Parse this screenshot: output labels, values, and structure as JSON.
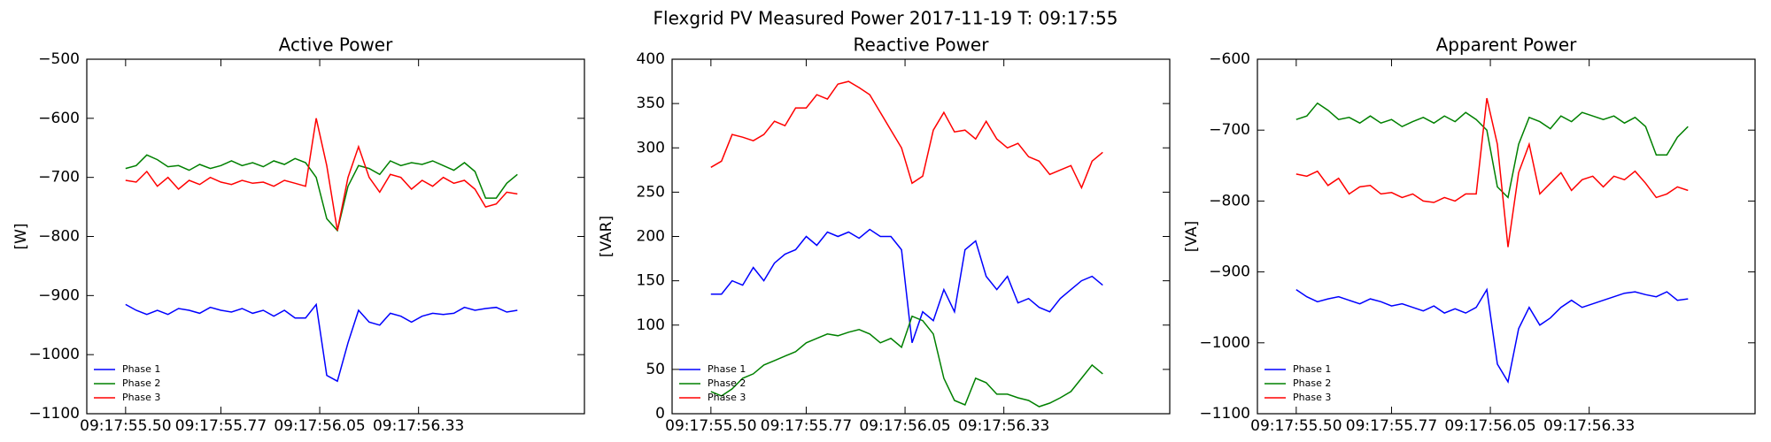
{
  "title": "Flexgrid PV Measured Power 2017-11-19 T: 09:17:55",
  "chart_data": [
    {
      "type": "line",
      "title": "Active Power",
      "ylabel": "[W]",
      "x": [
        "09:17:55.50",
        "09:17:55.53",
        "09:17:55.56",
        "09:17:55.59",
        "09:17:55.62",
        "09:17:55.65",
        "09:17:55.68",
        "09:17:55.71",
        "09:17:55.74",
        "09:17:55.77",
        "09:17:55.80",
        "09:17:55.83",
        "09:17:55.86",
        "09:17:55.89",
        "09:17:55.92",
        "09:17:55.95",
        "09:17:55.98",
        "09:17:56.01",
        "09:17:56.04",
        "09:17:56.07",
        "09:17:56.10",
        "09:17:56.13",
        "09:17:56.16",
        "09:17:56.19",
        "09:17:56.22",
        "09:17:56.25",
        "09:17:56.28",
        "09:17:56.31",
        "09:17:56.34",
        "09:17:56.37",
        "09:17:56.40",
        "09:17:56.43",
        "09:17:56.46",
        "09:17:56.49",
        "09:17:56.52",
        "09:17:56.55",
        "09:17:56.58",
        "09:17:56.61"
      ],
      "xlim": [
        "09:17:55.39",
        "09:17:56.80"
      ],
      "xticks": [
        "09:17:55.50",
        "09:17:55.77",
        "09:17:56.05",
        "09:17:56.33"
      ],
      "ylim": [
        -1100,
        -500
      ],
      "yticks": [
        {
          "value": -1100,
          "label": "−1100"
        },
        {
          "value": -1000,
          "label": "−1000"
        },
        {
          "value": -900,
          "label": "−900"
        },
        {
          "value": -800,
          "label": "−800"
        },
        {
          "value": -700,
          "label": "−700"
        },
        {
          "value": -600,
          "label": "−600"
        },
        {
          "value": -500,
          "label": "−500"
        }
      ],
      "legend": "lower left",
      "series": [
        {
          "name": "Phase 1",
          "color": "#0000ff",
          "values": [
            -915,
            -925,
            -932,
            -925,
            -932,
            -922,
            -925,
            -930,
            -920,
            -925,
            -928,
            -922,
            -930,
            -925,
            -935,
            -925,
            -938,
            -938,
            -915,
            -1035,
            -1045,
            -980,
            -925,
            -945,
            -950,
            -930,
            -935,
            -945,
            -935,
            -930,
            -932,
            -930,
            -920,
            -925,
            -922,
            -920,
            -928,
            -925
          ]
        },
        {
          "name": "Phase 2",
          "color": "#008000",
          "values": [
            -685,
            -680,
            -662,
            -670,
            -682,
            -680,
            -688,
            -678,
            -685,
            -680,
            -672,
            -680,
            -675,
            -682,
            -672,
            -678,
            -668,
            -675,
            -700,
            -770,
            -790,
            -715,
            -680,
            -685,
            -695,
            -672,
            -680,
            -675,
            -678,
            -672,
            -680,
            -688,
            -675,
            -690,
            -735,
            -735,
            -710,
            -695
          ]
        },
        {
          "name": "Phase 3",
          "color": "#ff0000",
          "values": [
            -705,
            -708,
            -690,
            -715,
            -700,
            -720,
            -705,
            -712,
            -700,
            -708,
            -712,
            -705,
            -710,
            -708,
            -715,
            -705,
            -710,
            -715,
            -600,
            -680,
            -790,
            -700,
            -648,
            -700,
            -725,
            -695,
            -700,
            -720,
            -705,
            -715,
            -700,
            -710,
            -705,
            -720,
            -750,
            -745,
            -725,
            -728
          ]
        }
      ]
    },
    {
      "type": "line",
      "title": "Reactive Power",
      "ylabel": "[VAR]",
      "x": [
        "09:17:55.50",
        "09:17:55.53",
        "09:17:55.56",
        "09:17:55.59",
        "09:17:55.62",
        "09:17:55.65",
        "09:17:55.68",
        "09:17:55.71",
        "09:17:55.74",
        "09:17:55.77",
        "09:17:55.80",
        "09:17:55.83",
        "09:17:55.86",
        "09:17:55.89",
        "09:17:55.92",
        "09:17:55.95",
        "09:17:55.98",
        "09:17:56.01",
        "09:17:56.04",
        "09:17:56.07",
        "09:17:56.10",
        "09:17:56.13",
        "09:17:56.16",
        "09:17:56.19",
        "09:17:56.22",
        "09:17:56.25",
        "09:17:56.28",
        "09:17:56.31",
        "09:17:56.34",
        "09:17:56.37",
        "09:17:56.40",
        "09:17:56.43",
        "09:17:56.46",
        "09:17:56.49",
        "09:17:56.52",
        "09:17:56.55",
        "09:17:56.58",
        "09:17:56.61"
      ],
      "xlim": [
        "09:17:55.39",
        "09:17:56.80"
      ],
      "xticks": [
        "09:17:55.50",
        "09:17:55.77",
        "09:17:56.05",
        "09:17:56.33"
      ],
      "ylim": [
        0,
        400
      ],
      "yticks": [
        0,
        50,
        100,
        150,
        200,
        250,
        300,
        350,
        400
      ],
      "legend": "lower left",
      "series": [
        {
          "name": "Phase 1",
          "color": "#0000ff",
          "values": [
            135,
            135,
            150,
            145,
            165,
            150,
            170,
            180,
            185,
            200,
            190,
            205,
            200,
            205,
            198,
            208,
            200,
            200,
            185,
            80,
            115,
            105,
            140,
            115,
            185,
            195,
            155,
            140,
            155,
            125,
            130,
            120,
            115,
            130,
            140,
            150,
            155,
            145
          ]
        },
        {
          "name": "Phase 2",
          "color": "#008000",
          "values": [
            25,
            20,
            28,
            40,
            45,
            55,
            60,
            65,
            70,
            80,
            85,
            90,
            88,
            92,
            95,
            90,
            80,
            85,
            75,
            110,
            105,
            90,
            40,
            15,
            10,
            40,
            35,
            22,
            22,
            18,
            15,
            8,
            12,
            18,
            25,
            40,
            55,
            45
          ]
        },
        {
          "name": "Phase 3",
          "color": "#ff0000",
          "values": [
            278,
            285,
            315,
            312,
            308,
            315,
            330,
            325,
            345,
            345,
            360,
            355,
            372,
            375,
            368,
            360,
            340,
            320,
            300,
            260,
            268,
            320,
            340,
            318,
            320,
            310,
            330,
            310,
            300,
            305,
            290,
            285,
            270,
            275,
            280,
            255,
            285,
            295
          ]
        }
      ]
    },
    {
      "type": "line",
      "title": "Apparent Power",
      "ylabel": "[VA]",
      "x": [
        "09:17:55.50",
        "09:17:55.53",
        "09:17:55.56",
        "09:17:55.59",
        "09:17:55.62",
        "09:17:55.65",
        "09:17:55.68",
        "09:17:55.71",
        "09:17:55.74",
        "09:17:55.77",
        "09:17:55.80",
        "09:17:55.83",
        "09:17:55.86",
        "09:17:55.89",
        "09:17:55.92",
        "09:17:55.95",
        "09:17:55.98",
        "09:17:56.01",
        "09:17:56.04",
        "09:17:56.07",
        "09:17:56.10",
        "09:17:56.13",
        "09:17:56.16",
        "09:17:56.19",
        "09:17:56.22",
        "09:17:56.25",
        "09:17:56.28",
        "09:17:56.31",
        "09:17:56.34",
        "09:17:56.37",
        "09:17:56.40",
        "09:17:56.43",
        "09:17:56.46",
        "09:17:56.49",
        "09:17:56.52",
        "09:17:56.55",
        "09:17:56.58",
        "09:17:56.61"
      ],
      "xlim": [
        "09:17:55.39",
        "09:17:56.80"
      ],
      "xticks": [
        "09:17:55.50",
        "09:17:55.77",
        "09:17:56.05",
        "09:17:56.33"
      ],
      "ylim": [
        -1100,
        -600
      ],
      "yticks": [
        {
          "value": -1100,
          "label": "−1100"
        },
        {
          "value": -1000,
          "label": "−1000"
        },
        {
          "value": -900,
          "label": "−900"
        },
        {
          "value": -800,
          "label": "−800"
        },
        {
          "value": -700,
          "label": "−700"
        },
        {
          "value": -600,
          "label": "−600"
        }
      ],
      "legend": "lower left",
      "series": [
        {
          "name": "Phase 1",
          "color": "#0000ff",
          "values": [
            -925,
            -935,
            -942,
            -938,
            -935,
            -940,
            -945,
            -938,
            -942,
            -948,
            -945,
            -950,
            -955,
            -948,
            -958,
            -952,
            -958,
            -950,
            -925,
            -1030,
            -1055,
            -980,
            -950,
            -975,
            -965,
            -950,
            -940,
            -950,
            -945,
            -940,
            -935,
            -930,
            -928,
            -932,
            -935,
            -928,
            -940,
            -938
          ]
        },
        {
          "name": "Phase 2",
          "color": "#008000",
          "values": [
            -685,
            -680,
            -662,
            -672,
            -685,
            -682,
            -690,
            -680,
            -690,
            -685,
            -695,
            -688,
            -682,
            -690,
            -680,
            -688,
            -675,
            -685,
            -700,
            -780,
            -795,
            -720,
            -682,
            -688,
            -698,
            -680,
            -688,
            -675,
            -680,
            -685,
            -680,
            -690,
            -682,
            -695,
            -735,
            -735,
            -710,
            -695
          ]
        },
        {
          "name": "Phase 3",
          "color": "#ff0000",
          "values": [
            -762,
            -765,
            -758,
            -778,
            -768,
            -790,
            -780,
            -778,
            -790,
            -788,
            -795,
            -790,
            -800,
            -802,
            -795,
            -800,
            -790,
            -790,
            -655,
            -720,
            -865,
            -760,
            -720,
            -790,
            -775,
            -760,
            -785,
            -770,
            -765,
            -780,
            -765,
            -770,
            -758,
            -775,
            -795,
            -790,
            -780,
            -785
          ]
        }
      ]
    }
  ]
}
